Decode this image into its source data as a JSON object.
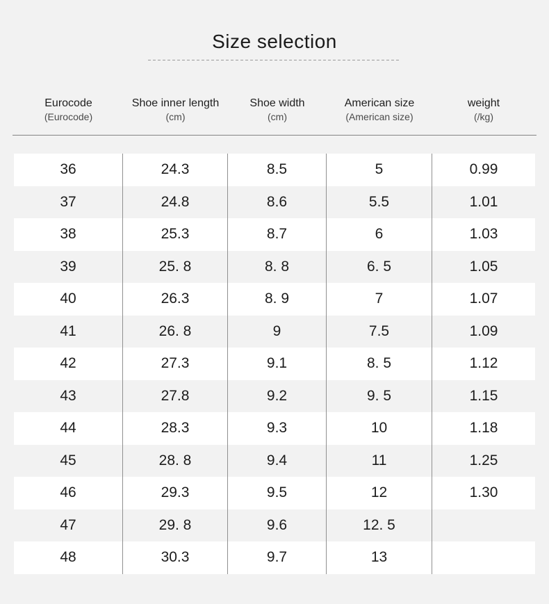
{
  "title": "Size selection",
  "columns": [
    {
      "label": "Eurocode",
      "sub": "(Eurocode)"
    },
    {
      "label": "Shoe inner length",
      "sub": "(cm)"
    },
    {
      "label": "Shoe width",
      "sub": "(cm)"
    },
    {
      "label": "American size",
      "sub": "(American size)"
    },
    {
      "label": "weight",
      "sub": "(/kg)"
    }
  ],
  "rows": [
    [
      "36",
      "24.3",
      "8.5",
      "5",
      "0.99"
    ],
    [
      "37",
      "24.8",
      "8.6",
      "5.5",
      "1.01"
    ],
    [
      "38",
      "25.3",
      "8.7",
      "6",
      "1.03"
    ],
    [
      "39",
      "25. 8",
      "8. 8",
      "6. 5",
      "1.05"
    ],
    [
      "40",
      "26.3",
      "8. 9",
      "7",
      "1.07"
    ],
    [
      "41",
      "26. 8",
      "9",
      "7.5",
      "1.09"
    ],
    [
      "42",
      "27.3",
      "9.1",
      "8. 5",
      "1.12"
    ],
    [
      "43",
      "27.8",
      "9.2",
      "9. 5",
      "1.15"
    ],
    [
      "44",
      "28.3",
      "9.3",
      "10",
      "1.18"
    ],
    [
      "45",
      "28. 8",
      "9.4",
      "11",
      "1.25"
    ],
    [
      "46",
      "29.3",
      "9.5",
      "12",
      "1.30"
    ],
    [
      "47",
      "29. 8",
      "9.6",
      "12. 5",
      ""
    ],
    [
      "48",
      "30.3",
      "9.7",
      "13",
      ""
    ]
  ],
  "colors": {
    "page_background": "#f2f2f2",
    "row_white": "#ffffff",
    "row_gray": "#f2f2f2",
    "column_line": "#8f8f8f",
    "header_underline": "#848484",
    "dashed_line": "#9a9a9a",
    "text": "#1c1c1c"
  }
}
